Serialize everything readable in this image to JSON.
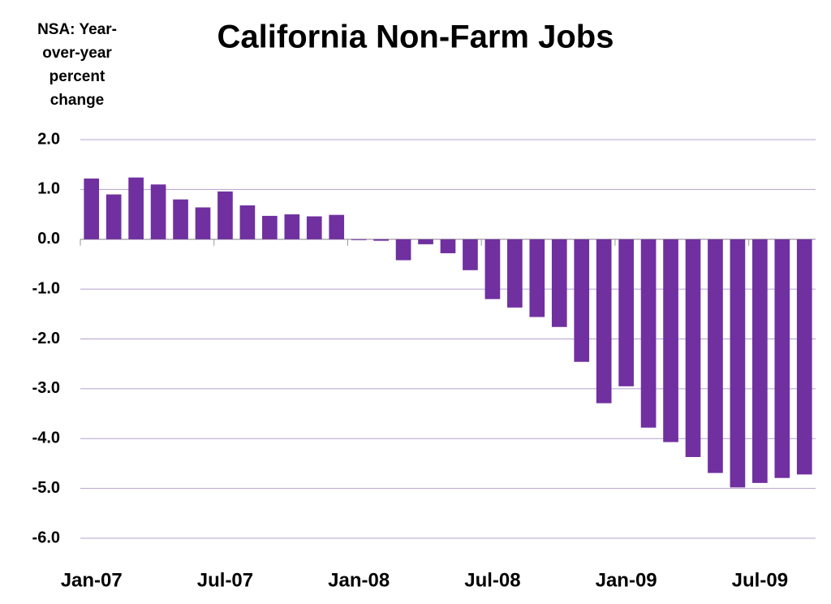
{
  "chart_data": {
    "type": "bar",
    "title": "California Non-Farm Jobs",
    "y_label": "NSA: Year-over-year percent change",
    "categories": [
      "Jan-07",
      null,
      null,
      null,
      null,
      null,
      "Jul-07",
      null,
      null,
      null,
      null,
      null,
      "Jan-08",
      null,
      null,
      null,
      null,
      null,
      "Jul-08",
      null,
      null,
      null,
      null,
      null,
      "Jan-09",
      null,
      null,
      null,
      null,
      null,
      "Jul-09",
      null,
      null
    ],
    "values": [
      1.22,
      0.9,
      1.24,
      1.1,
      0.8,
      0.64,
      0.96,
      0.68,
      0.47,
      0.5,
      0.46,
      0.49,
      -0.01,
      -0.03,
      -0.42,
      -0.1,
      -0.28,
      -0.62,
      -1.2,
      -1.37,
      -1.56,
      -1.76,
      -2.46,
      -3.29,
      -2.95,
      -3.78,
      -4.07,
      -4.37,
      -4.69,
      -4.98,
      -4.89,
      -4.79,
      -4.72
    ],
    "color": "#7030a0",
    "ylim": [
      -6,
      2
    ],
    "yticks": [
      {
        "value": 2,
        "label": "2.0"
      },
      {
        "value": 1,
        "label": "1.0"
      },
      {
        "value": 0,
        "label": "0.0"
      },
      {
        "value": -1,
        "label": "-1.0"
      },
      {
        "value": -2,
        "label": "-2.0"
      },
      {
        "value": -3,
        "label": "-3.0"
      },
      {
        "value": -4,
        "label": "-4.0"
      },
      {
        "value": -5,
        "label": "-5.0"
      },
      {
        "value": -6,
        "label": "-6.0"
      }
    ],
    "grid": true
  }
}
